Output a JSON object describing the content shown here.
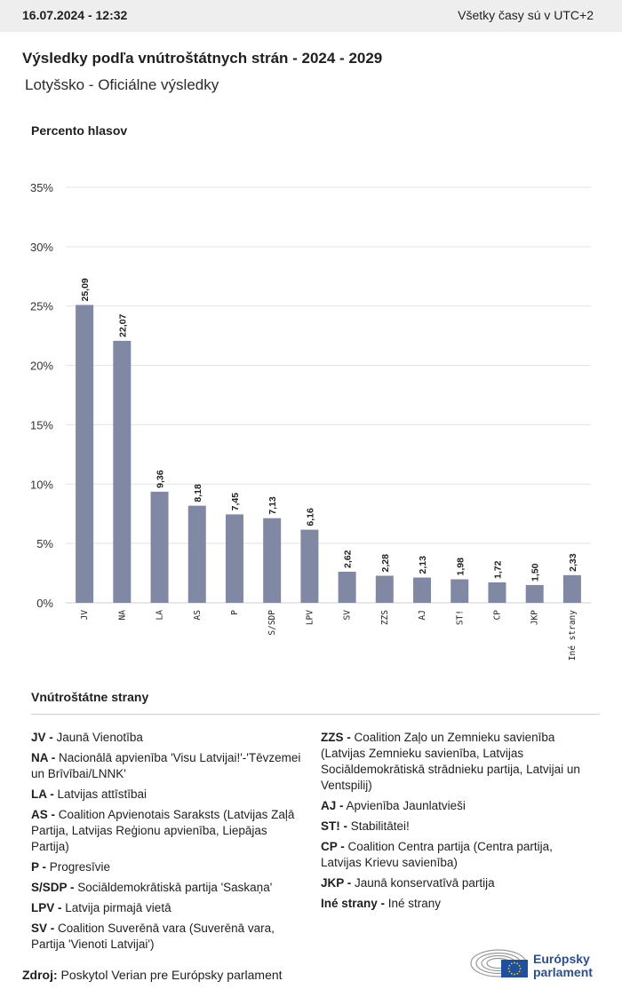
{
  "header": {
    "timestamp": "16.07.2024 - 12:32",
    "timezone_note": "Všetky časy sú v UTC+2"
  },
  "title": "Výsledky podľa vnútroštátnych strán - 2024 - 2029",
  "subtitle": "Lotyšsko - Oficiálne výsledky",
  "colors": {
    "bar": "#8088a4",
    "grid": "#e3e3e3",
    "brand": "#2b4f8c",
    "flag": "#1e4fa0"
  },
  "chart_data": {
    "type": "bar",
    "ylabel": "Percento hlasov",
    "categories": [
      "JV",
      "NA",
      "LA",
      "AS",
      "P",
      "S/SDP",
      "LPV",
      "SV",
      "ZZS",
      "AJ",
      "ST!",
      "CP",
      "JKP",
      "Iné strany"
    ],
    "values": [
      25.09,
      22.07,
      9.36,
      8.18,
      7.45,
      7.13,
      6.16,
      2.62,
      2.28,
      2.13,
      1.98,
      1.72,
      1.5,
      2.33
    ],
    "value_labels": [
      "25,09",
      "22,07",
      "9,36",
      "8,18",
      "7,45",
      "7,13",
      "6,16",
      "2,62",
      "2,28",
      "2,13",
      "1,98",
      "1,72",
      "1,50",
      "2,33"
    ],
    "yticks": [
      "0%",
      "5%",
      "10%",
      "15%",
      "20%",
      "25%",
      "30%",
      "35%"
    ],
    "ylim": [
      0,
      35
    ],
    "grid": true
  },
  "legend": {
    "title": "Vnútroštátne strany",
    "left": [
      {
        "abbr": "JV -",
        "name": "Jaunā Vienotība"
      },
      {
        "abbr": "NA -",
        "name": "Nacionālā apvienība 'Visu Latvijai!'-'Tēvzemei un Brīvībai/LNNK'"
      },
      {
        "abbr": "LA -",
        "name": "Latvijas attīstībai"
      },
      {
        "abbr": "AS -",
        "name": "Coalition Apvienotais Saraksts (Latvijas Zaļā Partija, Latvijas Reģionu apvienība, Liepājas Partija)"
      },
      {
        "abbr": "P -",
        "name": "Progresīvie"
      },
      {
        "abbr": "S/SDP -",
        "name": "Sociāldemokrātiskā partija 'Saskaņa'"
      },
      {
        "abbr": "LPV -",
        "name": "Latvija pirmajā vietā"
      },
      {
        "abbr": "SV -",
        "name": "Coalition Suverēnā vara (Suverēnā vara, Partija 'Vienoti Latvijai')"
      }
    ],
    "right": [
      {
        "abbr": "ZZS -",
        "name": "Coalition Zaļo un Zemnieku savienība (Latvijas Zemnieku savienība, Latvijas Sociāldemokrātiskā strādnieku partija, Latvijai un Ventspilij)"
      },
      {
        "abbr": "AJ -",
        "name": "Apvienība Jaunlatvieši"
      },
      {
        "abbr": "ST! -",
        "name": "Stabilitātei!"
      },
      {
        "abbr": "CP -",
        "name": "Coalition Centra partija (Centra partija, Latvijas Krievu savienība)"
      },
      {
        "abbr": "JKP -",
        "name": "Jaunā konservatīvā partija"
      },
      {
        "abbr": "Iné strany -",
        "name": "Iné strany"
      }
    ]
  },
  "source": {
    "label": "Zdroj:",
    "text": "Poskytol Verian pre Európsky parlament"
  },
  "logo": {
    "line1": "Európsky",
    "line2": "parlament"
  }
}
